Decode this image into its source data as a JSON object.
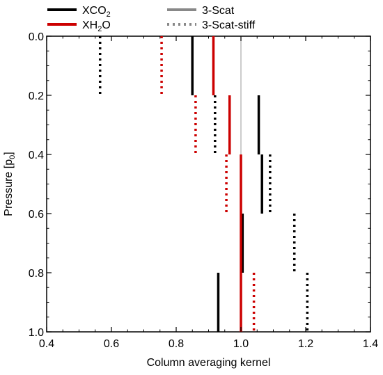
{
  "chart_data": {
    "type": "step-profile",
    "xlabel": "Column averaging kernel",
    "ylabel": "Pressure [p0]",
    "xlim": [
      0.4,
      1.4
    ],
    "ylim": [
      1.0,
      0.0
    ],
    "y_inverted": true,
    "xticks": [
      0.4,
      0.6,
      0.8,
      1.0,
      1.2,
      1.4
    ],
    "xtick_labels": [
      "0.4",
      "0.6",
      "0.8",
      "1.0",
      "1.2",
      "1.4"
    ],
    "yticks": [
      0.0,
      0.2,
      0.4,
      0.6,
      0.8,
      1.0
    ],
    "ytick_labels": [
      "0.0",
      "0.2",
      "0.4",
      "0.6",
      "0.8",
      "1.0"
    ],
    "reference_line": {
      "x": 1.0,
      "color": "#aaaaaa"
    },
    "legend": [
      {
        "label": "XCO2",
        "kind": "species",
        "color": "#000000"
      },
      {
        "label": "XH2O",
        "kind": "species",
        "color": "#cc0000"
      },
      {
        "label": "3-Scat",
        "kind": "style",
        "color": "#888888",
        "style": "solid"
      },
      {
        "label": "3-Scat-stiff",
        "kind": "style",
        "color": "#888888",
        "style": "dotted"
      }
    ],
    "series": [
      {
        "name": "XCO2 3-Scat",
        "color": "#000000",
        "style": "solid",
        "levels": [
          {
            "p": [
              0.0,
              0.2
            ],
            "ak": 0.85
          },
          {
            "p": [
              0.2,
              0.4
            ],
            "ak": 1.055
          },
          {
            "p": [
              0.4,
              0.6
            ],
            "ak": 1.065
          },
          {
            "p": [
              0.6,
              0.8
            ],
            "ak": 1.005
          },
          {
            "p": [
              0.8,
              1.0
            ],
            "ak": 0.93
          }
        ]
      },
      {
        "name": "XH2O 3-Scat",
        "color": "#cc0000",
        "style": "solid",
        "levels": [
          {
            "p": [
              0.0,
              0.2
            ],
            "ak": 0.915
          },
          {
            "p": [
              0.2,
              0.4
            ],
            "ak": 0.965
          },
          {
            "p": [
              0.4,
              0.6
            ],
            "ak": 1.0
          },
          {
            "p": [
              0.6,
              0.8
            ],
            "ak": 1.0
          },
          {
            "p": [
              0.8,
              1.0
            ],
            "ak": 1.0
          }
        ]
      },
      {
        "name": "XCO2 3-Scat-stiff",
        "color": "#000000",
        "style": "dotted",
        "levels": [
          {
            "p": [
              0.0,
              0.2
            ],
            "ak": 0.565
          },
          {
            "p": [
              0.2,
              0.4
            ],
            "ak": 0.92
          },
          {
            "p": [
              0.4,
              0.6
            ],
            "ak": 1.09
          },
          {
            "p": [
              0.6,
              0.8
            ],
            "ak": 1.165
          },
          {
            "p": [
              0.8,
              1.0
            ],
            "ak": 1.205
          }
        ]
      },
      {
        "name": "XH2O 3-Scat-stiff",
        "color": "#cc0000",
        "style": "dotted",
        "levels": [
          {
            "p": [
              0.0,
              0.2
            ],
            "ak": 0.755
          },
          {
            "p": [
              0.2,
              0.4
            ],
            "ak": 0.86
          },
          {
            "p": [
              0.4,
              0.6
            ],
            "ak": 0.955
          },
          {
            "p": [
              0.6,
              0.8
            ],
            "ak": null
          },
          {
            "p": [
              0.8,
              1.0
            ],
            "ak": 1.04
          }
        ]
      }
    ]
  }
}
